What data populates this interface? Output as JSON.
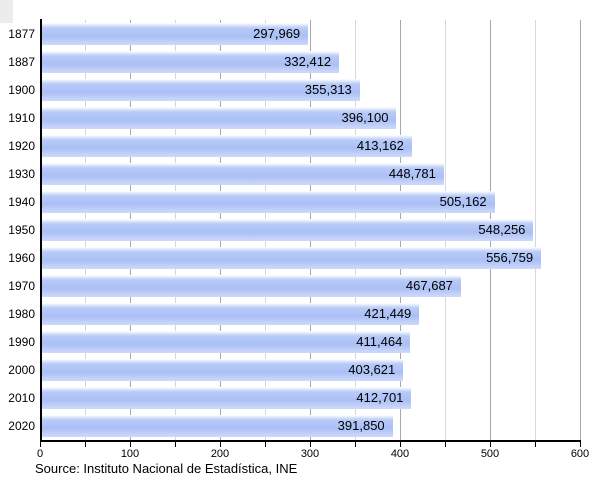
{
  "chart_data": {
    "type": "bar",
    "orientation": "horizontal",
    "title": "",
    "xlabel": "",
    "ylabel": "",
    "categories": [
      "1877",
      "1887",
      "1900",
      "1910",
      "1920",
      "1930",
      "1940",
      "1950",
      "1960",
      "1970",
      "1980",
      "1990",
      "2000",
      "2010",
      "2020"
    ],
    "values": [
      297969,
      332412,
      355313,
      396100,
      413162,
      448781,
      505162,
      548256,
      556759,
      467687,
      421449,
      411464,
      403621,
      412701,
      391850
    ],
    "value_labels": [
      "297,969",
      "332,412",
      "355,313",
      "396,100",
      "413,162",
      "448,781",
      "505,162",
      "548,256",
      "556,759",
      "467,687",
      "421,449",
      "411,464",
      "403,621",
      "412,701",
      "391,850"
    ],
    "axis_unit_divisor": 1000,
    "xlim": [
      0,
      600
    ],
    "x_tick_labels": [
      "0",
      "100",
      "200",
      "300",
      "400",
      "500",
      "600"
    ],
    "x_major_step": 100,
    "x_minor_step": 50,
    "grid": true,
    "legend": null,
    "colors": {
      "bar_main": "#abc1f6",
      "bar_gradient_top": "#ffffff",
      "bar_gradient_upper": "#b9cbf8",
      "bar_gradient_lower": "#aabff5",
      "bar_gradient_bottom": "#cfdbfa",
      "gridline_minor": "#d7d7d7",
      "gridline_major": "#a8a8a8",
      "axis": "#000000",
      "text": "#000000"
    }
  },
  "footer": {
    "source": "Source: Instituto Nacional de Estadística, INE"
  }
}
